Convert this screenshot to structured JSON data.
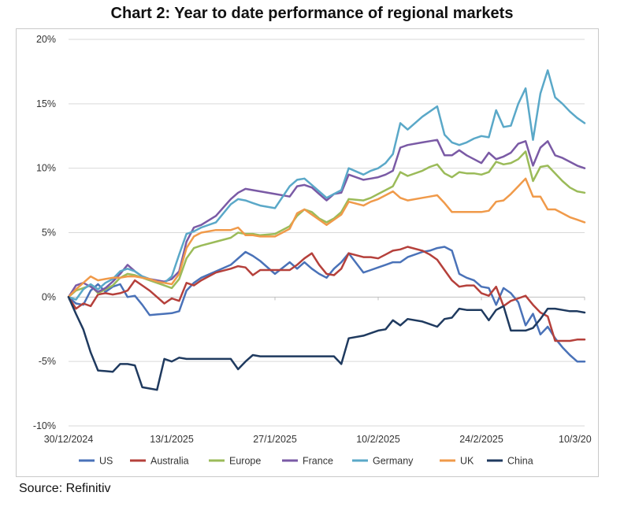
{
  "title": "Chart 2: Year to date performance of regional markets",
  "source": "Source: Refinitiv",
  "chart_data": {
    "type": "line",
    "title": "Chart 2: Year to date performance of regional markets",
    "xlabel": "",
    "ylabel": "",
    "ylim": [
      -10,
      20
    ],
    "yticks": [
      -10,
      -5,
      0,
      5,
      10,
      15,
      20
    ],
    "ytick_labels": [
      "-10%",
      "-5%",
      "0%",
      "5%",
      "10%",
      "15%",
      "20%"
    ],
    "xlim": [
      0,
      70
    ],
    "xtick_positions": [
      0,
      14,
      28,
      42,
      56,
      70
    ],
    "xtick_labels": [
      "30/12/2024",
      "13/1/2025",
      "27/1/2025",
      "10/2/2025",
      "24/2/2025",
      "10/3/20"
    ],
    "series": [
      {
        "name": "US",
        "color": "#4a72b8",
        "x": [
          0,
          1,
          2,
          3,
          4,
          5,
          6,
          7,
          8,
          9,
          10,
          11,
          12,
          13,
          14,
          15,
          16,
          17,
          18,
          20,
          22,
          24,
          25,
          26,
          28,
          30,
          31,
          32,
          33,
          34,
          35,
          36,
          37,
          38,
          40,
          41,
          42,
          43,
          44,
          45,
          46,
          48,
          49,
          50,
          51,
          52,
          53,
          54,
          55,
          56,
          57,
          58,
          59,
          60,
          61,
          62,
          63,
          64,
          65,
          66,
          67,
          68,
          69,
          70
        ],
        "y": [
          0,
          -0.5,
          -0.6,
          0.5,
          1.0,
          0.4,
          0.8,
          1.0,
          0,
          0.1,
          -0.6,
          -1.4,
          -1.35,
          -1.3,
          -1.25,
          -1.1,
          0.5,
          1.1,
          1.5,
          2.0,
          2.5,
          3.5,
          3.2,
          2.8,
          1.8,
          2.7,
          2.2,
          2.7,
          2.2,
          1.8,
          1.5,
          2.2,
          2.7,
          3.4,
          1.9,
          2.1,
          2.3,
          2.5,
          2.7,
          2.7,
          3.1,
          3.5,
          3.6,
          3.8,
          3.9,
          3.6,
          1.8,
          1.5,
          1.3,
          0.8,
          0.7,
          -0.6,
          0.7,
          0.3,
          -0.4,
          -2.2,
          -1.3,
          -2.9,
          -2.3,
          -3.2,
          -3.9,
          -4.5,
          -5.0,
          -5.0
        ]
      },
      {
        "name": "Australia",
        "color": "#b5403b",
        "x": [
          0,
          1,
          2,
          3,
          4,
          5,
          6,
          7,
          8,
          9,
          10,
          11,
          12,
          13,
          14,
          15,
          16,
          17,
          18,
          20,
          22,
          23,
          24,
          25,
          26,
          28,
          30,
          31,
          32,
          33,
          34,
          35,
          36,
          37,
          38,
          40,
          41,
          42,
          43,
          44,
          45,
          46,
          48,
          49,
          50,
          51,
          52,
          53,
          54,
          55,
          56,
          57,
          58,
          59,
          60,
          61,
          62,
          63,
          64,
          65,
          66,
          67,
          68,
          69,
          70
        ],
        "y": [
          0,
          -0.9,
          -0.5,
          -0.7,
          0.2,
          0.3,
          0.2,
          0.3,
          0.5,
          1.3,
          0.9,
          0.5,
          0.0,
          -0.5,
          -0.1,
          -0.3,
          1.1,
          0.9,
          1.3,
          1.9,
          2.2,
          2.4,
          2.3,
          1.7,
          2.1,
          2.1,
          2.1,
          2.5,
          3.0,
          3.4,
          2.5,
          1.8,
          1.7,
          2.2,
          3.4,
          3.1,
          3.1,
          3.0,
          3.3,
          3.6,
          3.7,
          3.9,
          3.6,
          3.3,
          2.9,
          2.1,
          1.3,
          0.8,
          0.9,
          0.9,
          0.3,
          0.1,
          0.8,
          -0.7,
          -0.3,
          -0.1,
          0.1,
          -0.6,
          -1.2,
          -1.5,
          -3.4,
          -3.4,
          -3.4,
          -3.3,
          -3.3
        ]
      },
      {
        "name": "Europe",
        "color": "#9bbb59",
        "x": [
          0,
          1,
          2,
          3,
          4,
          5,
          6,
          7,
          8,
          9,
          10,
          11,
          12,
          13,
          14,
          15,
          16,
          17,
          18,
          20,
          22,
          23,
          24,
          25,
          26,
          28,
          30,
          31,
          32,
          33,
          34,
          35,
          36,
          37,
          38,
          40,
          41,
          42,
          43,
          44,
          45,
          46,
          48,
          49,
          50,
          51,
          52,
          53,
          54,
          55,
          56,
          57,
          58,
          59,
          60,
          61,
          62,
          63,
          64,
          65,
          66,
          67,
          68,
          69,
          70
        ],
        "y": [
          0,
          0.5,
          0.7,
          0.9,
          0.3,
          0.6,
          0.9,
          1.5,
          1.8,
          1.7,
          1.5,
          1.3,
          1.1,
          0.9,
          0.7,
          1.4,
          3.0,
          3.8,
          4.0,
          4.3,
          4.6,
          5.0,
          4.9,
          4.9,
          4.8,
          4.9,
          5.5,
          6.3,
          6.8,
          6.6,
          6.1,
          5.8,
          6.1,
          6.6,
          7.6,
          7.5,
          7.7,
          8.0,
          8.3,
          8.6,
          9.7,
          9.4,
          9.8,
          10.1,
          10.3,
          9.6,
          9.3,
          9.7,
          9.6,
          9.6,
          9.5,
          9.7,
          10.5,
          10.3,
          10.4,
          10.7,
          11.3,
          9.0,
          10.1,
          10.2,
          9.6,
          9.0,
          8.5,
          8.2,
          8.1
        ]
      },
      {
        "name": "France",
        "color": "#7a5aa5",
        "x": [
          0,
          1,
          2,
          3,
          4,
          5,
          6,
          7,
          8,
          9,
          10,
          11,
          12,
          13,
          14,
          15,
          16,
          17,
          18,
          20,
          22,
          23,
          24,
          25,
          26,
          28,
          30,
          31,
          32,
          33,
          34,
          35,
          36,
          37,
          38,
          40,
          41,
          42,
          43,
          44,
          45,
          46,
          48,
          49,
          50,
          51,
          52,
          53,
          54,
          55,
          56,
          57,
          58,
          59,
          60,
          61,
          62,
          63,
          64,
          65,
          66,
          67,
          68,
          69,
          70
        ],
        "y": [
          0,
          0.9,
          1.1,
          0.8,
          0.4,
          0.7,
          1.2,
          1.8,
          2.5,
          2.0,
          1.6,
          1.4,
          1.3,
          1.2,
          1.4,
          2.0,
          4.3,
          5.4,
          5.6,
          6.3,
          7.6,
          8.1,
          8.4,
          8.3,
          8.2,
          8.0,
          7.8,
          8.6,
          8.7,
          8.5,
          8.0,
          7.5,
          8.0,
          8.1,
          9.5,
          9.1,
          9.2,
          9.3,
          9.5,
          9.8,
          11.6,
          11.8,
          12.0,
          12.1,
          12.2,
          11.0,
          11.0,
          11.4,
          11.0,
          10.7,
          10.4,
          11.2,
          10.7,
          10.9,
          11.2,
          11.9,
          12.1,
          10.2,
          11.6,
          12.1,
          11.0,
          10.8,
          10.5,
          10.2,
          10.0
        ]
      },
      {
        "name": "Germany",
        "color": "#5aa8c8",
        "x": [
          0,
          1,
          2,
          3,
          4,
          5,
          6,
          7,
          8,
          9,
          10,
          11,
          12,
          13,
          14,
          15,
          16,
          17,
          18,
          20,
          22,
          23,
          24,
          25,
          26,
          28,
          30,
          31,
          32,
          33,
          34,
          35,
          36,
          37,
          38,
          40,
          41,
          42,
          43,
          44,
          45,
          46,
          48,
          49,
          50,
          51,
          52,
          53,
          54,
          55,
          56,
          57,
          58,
          59,
          60,
          61,
          62,
          63,
          64,
          65,
          66,
          67,
          68,
          69,
          70
        ],
        "y": [
          0,
          -0.2,
          0.6,
          1.0,
          0.6,
          1.1,
          1.4,
          2.0,
          2.2,
          2.0,
          1.6,
          1.4,
          1.2,
          1.1,
          1.6,
          3.3,
          4.9,
          5.1,
          5.4,
          5.8,
          7.2,
          7.6,
          7.5,
          7.3,
          7.1,
          6.9,
          8.6,
          9.1,
          9.2,
          8.7,
          8.2,
          7.7,
          8.0,
          8.3,
          10.0,
          9.5,
          9.8,
          10.0,
          10.4,
          11.1,
          13.5,
          13.0,
          14.0,
          14.4,
          14.8,
          12.6,
          12.0,
          11.8,
          12.0,
          12.3,
          12.5,
          12.4,
          14.5,
          13.2,
          13.3,
          15.0,
          16.2,
          12.2,
          15.8,
          17.6,
          15.5,
          15.0,
          14.4,
          13.9,
          13.5
        ]
      },
      {
        "name": "UK",
        "color": "#f09a4a",
        "x": [
          0,
          1,
          2,
          3,
          4,
          5,
          6,
          7,
          8,
          9,
          10,
          11,
          12,
          13,
          14,
          15,
          16,
          17,
          18,
          20,
          22,
          23,
          24,
          25,
          26,
          28,
          30,
          31,
          32,
          33,
          34,
          35,
          36,
          37,
          38,
          40,
          41,
          42,
          43,
          44,
          45,
          46,
          48,
          49,
          50,
          51,
          52,
          53,
          54,
          55,
          56,
          57,
          58,
          59,
          60,
          61,
          62,
          63,
          64,
          65,
          66,
          67,
          68,
          69,
          70
        ],
        "y": [
          0,
          0.6,
          1.1,
          1.6,
          1.3,
          1.4,
          1.5,
          1.5,
          1.6,
          1.6,
          1.5,
          1.4,
          1.2,
          1.1,
          1.0,
          1.8,
          3.8,
          4.7,
          5.0,
          5.2,
          5.2,
          5.4,
          4.8,
          4.8,
          4.7,
          4.7,
          5.3,
          6.5,
          6.8,
          6.4,
          6.0,
          5.6,
          6.0,
          6.4,
          7.4,
          7.1,
          7.4,
          7.6,
          7.9,
          8.2,
          7.7,
          7.5,
          7.7,
          7.8,
          7.9,
          7.3,
          6.6,
          6.6,
          6.6,
          6.6,
          6.6,
          6.7,
          7.4,
          7.5,
          8.0,
          8.6,
          9.2,
          7.8,
          7.8,
          6.8,
          6.8,
          6.5,
          6.2,
          6.0,
          5.8
        ]
      },
      {
        "name": "China",
        "color": "#1f3a5f",
        "x": [
          0,
          1,
          2,
          3,
          4,
          5,
          6,
          7,
          8,
          9,
          10,
          11,
          12,
          13,
          14,
          15,
          16,
          17,
          18,
          20,
          22,
          23,
          24,
          25,
          26,
          28,
          30,
          31,
          32,
          33,
          34,
          35,
          36,
          37,
          38,
          40,
          41,
          42,
          43,
          44,
          45,
          46,
          48,
          49,
          50,
          51,
          52,
          53,
          54,
          55,
          56,
          57,
          58,
          59,
          60,
          61,
          62,
          63,
          64,
          65,
          66,
          67,
          68,
          69,
          70
        ],
        "y": [
          0,
          -1.3,
          -2.5,
          -4.3,
          -5.7,
          -5.75,
          -5.8,
          -5.2,
          -5.2,
          -5.3,
          -7.0,
          -7.1,
          -7.2,
          -4.8,
          -5.0,
          -4.7,
          -4.8,
          -4.8,
          -4.8,
          -4.8,
          -4.8,
          -5.6,
          -5.0,
          -4.5,
          -4.6,
          -4.6,
          -4.6,
          -4.6,
          -4.6,
          -4.6,
          -4.6,
          -4.6,
          -4.6,
          -5.2,
          -3.2,
          -3.0,
          -2.8,
          -2.6,
          -2.5,
          -1.8,
          -2.2,
          -1.7,
          -1.9,
          -2.1,
          -2.3,
          -1.7,
          -1.6,
          -0.9,
          -1.0,
          -1.0,
          -1.0,
          -1.8,
          -1.0,
          -0.7,
          -2.6,
          -2.6,
          -2.6,
          -2.4,
          -1.7,
          -0.9,
          -0.9,
          -1.0,
          -1.1,
          -1.1,
          -1.2
        ]
      }
    ],
    "legend": [
      "US",
      "Australia",
      "Europe",
      "France",
      "Germany",
      "UK",
      "China"
    ],
    "legend_position": "bottom"
  }
}
